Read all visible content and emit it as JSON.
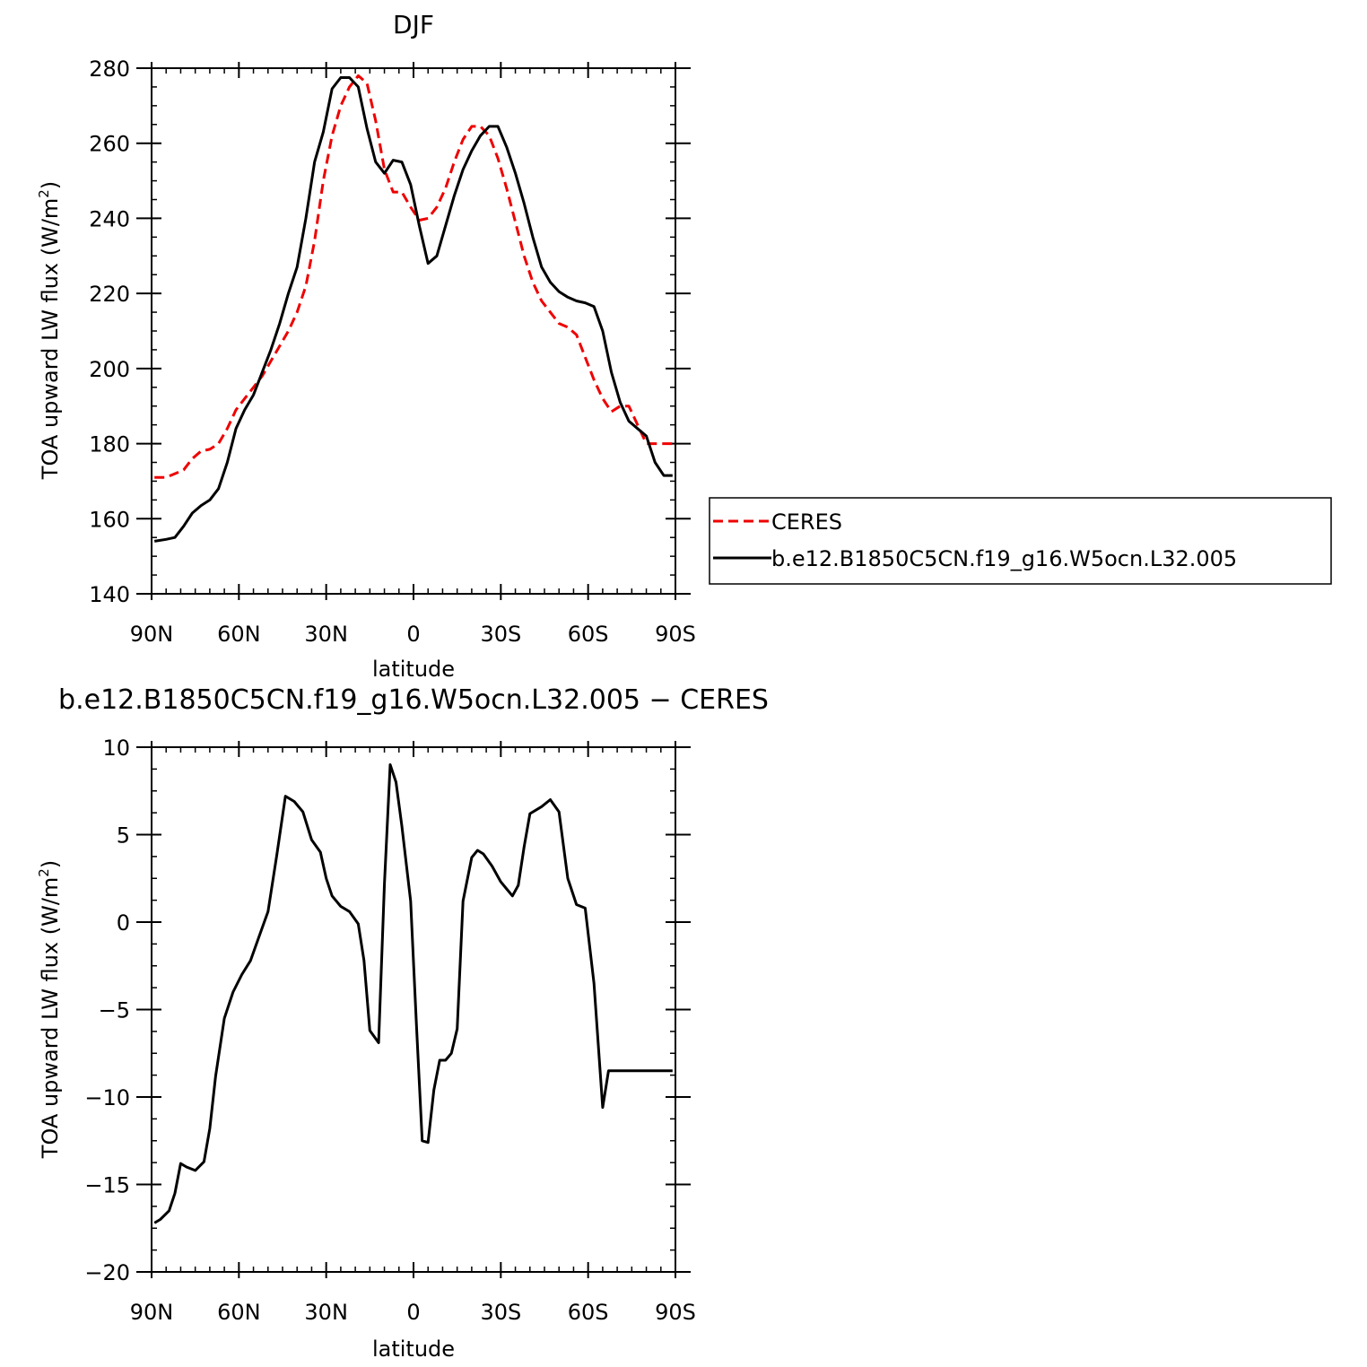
{
  "chart_data": [
    {
      "type": "line",
      "title": "DJF",
      "xlabel": "latitude",
      "ylabel_main": "TOA upward LW flux (W/m",
      "ylabel_sup": "2",
      "ylabel_end": ")",
      "xlim": [
        90,
        -90
      ],
      "ylim": [
        140,
        280
      ],
      "xticks": [
        90,
        60,
        30,
        0,
        -30,
        -60,
        -90
      ],
      "xtick_labels": [
        "90N",
        "60N",
        "30N",
        "0",
        "30S",
        "60S",
        "90S"
      ],
      "yticks": [
        140,
        160,
        180,
        200,
        220,
        240,
        260,
        280
      ],
      "ytick_labels": [
        "140",
        "160",
        "180",
        "200",
        "220",
        "240",
        "260",
        "280"
      ],
      "legend": {
        "placement": "right",
        "entries": [
          "CERES",
          "b.e12.B1850C5CN.f19_g16.W5ocn.L32.005"
        ]
      },
      "series": [
        {
          "name": "CERES",
          "color": "#ee0000",
          "style": "dashed",
          "x": [
            89,
            85,
            82,
            79,
            76,
            73,
            70,
            67,
            64,
            61,
            58,
            55,
            52,
            49,
            46,
            43,
            40,
            37,
            34,
            31,
            28,
            25,
            22,
            19,
            16,
            13,
            10,
            7,
            4,
            1,
            -2,
            -5,
            -8,
            -11,
            -14,
            -17,
            -20,
            -23,
            -26,
            -29,
            -32,
            -35,
            -38,
            -41,
            -44,
            -47,
            -50,
            -53,
            -56,
            -59,
            -62,
            -65,
            -68,
            -71,
            -74,
            -77,
            -80,
            -83,
            -86,
            -89
          ],
          "y": [
            171,
            171,
            172,
            173,
            176,
            178,
            178.5,
            180,
            184,
            189,
            192,
            195,
            198,
            202,
            206,
            210,
            215,
            222,
            234,
            250,
            262,
            270,
            275,
            278,
            276,
            266,
            253,
            247,
            247,
            243,
            239.5,
            240,
            243,
            248,
            255,
            261,
            264.5,
            264.5,
            262,
            256,
            248,
            239,
            230,
            223,
            218,
            215,
            212,
            211,
            209,
            203,
            197,
            192,
            188.5,
            190,
            190,
            185,
            180,
            180,
            180,
            180
          ]
        },
        {
          "name": "b.e12.B1850C5CN.f19_g16.W5ocn.L32.005",
          "color": "#000000",
          "style": "solid",
          "x": [
            89,
            85,
            82,
            79,
            76,
            73,
            70,
            67,
            64,
            61,
            58,
            55,
            52,
            49,
            46,
            43,
            40,
            37,
            34,
            31,
            28,
            25,
            22,
            19,
            16,
            13,
            10,
            7,
            4,
            1,
            -2,
            -5,
            -8,
            -11,
            -14,
            -17,
            -20,
            -23,
            -26,
            -29,
            -32,
            -35,
            -38,
            -41,
            -44,
            -47,
            -50,
            -53,
            -56,
            -59,
            -62,
            -65,
            -68,
            -71,
            -74,
            -77,
            -80,
            -83,
            -86,
            -89
          ],
          "y": [
            154,
            154.5,
            155,
            158,
            161.5,
            163.5,
            165,
            168,
            175,
            184,
            189,
            193,
            199,
            205,
            212,
            220,
            227,
            240,
            255,
            263,
            274.5,
            277.5,
            277.5,
            275,
            264,
            255,
            252,
            255.5,
            255,
            249,
            238,
            228,
            230,
            238,
            246,
            253,
            258,
            262,
            264.5,
            264.5,
            259,
            252,
            244,
            235,
            227,
            223,
            220.5,
            219,
            218,
            217.5,
            216.5,
            210,
            199,
            191,
            186,
            184,
            182,
            175,
            171.5,
            171.5
          ]
        }
      ]
    },
    {
      "type": "line",
      "title": "b.e12.B1850C5CN.f19_g16.W5ocn.L32.005 − CERES",
      "xlabel": "latitude",
      "ylabel_main": "TOA upward LW flux (W/m",
      "ylabel_sup": "2",
      "ylabel_end": ")",
      "xlim": [
        90,
        -90
      ],
      "ylim": [
        -20,
        10
      ],
      "xticks": [
        90,
        60,
        30,
        0,
        -30,
        -60,
        -90
      ],
      "xtick_labels": [
        "90N",
        "60N",
        "30N",
        "0",
        "30S",
        "60S",
        "90S"
      ],
      "yticks": [
        -20,
        -15,
        -10,
        -5,
        0,
        5,
        10
      ],
      "ytick_labels": [
        "−20",
        "−15",
        "−10",
        "−5",
        "0",
        "5",
        "10"
      ],
      "series": [
        {
          "color": "#000000",
          "style": "solid",
          "x": [
            89,
            87,
            84,
            82,
            80,
            78,
            75,
            72,
            70,
            68,
            65,
            62,
            59,
            56,
            53,
            50,
            47,
            44,
            41,
            38,
            35,
            32,
            30,
            28,
            25,
            22,
            19,
            17,
            15,
            12,
            10,
            8,
            6,
            4,
            1,
            -1,
            -3,
            -5,
            -7,
            -9,
            -11,
            -13,
            -15,
            -17,
            -20,
            -22,
            -24,
            -27,
            -30,
            -32,
            -34,
            -36,
            -38,
            -40,
            -44,
            -47,
            -50,
            -53,
            -56,
            -59,
            -62,
            -65,
            -67,
            -70,
            -72,
            -74,
            -76,
            -79,
            -82,
            -86,
            -89
          ],
          "y": [
            -17.2,
            -17,
            -16.5,
            -15.5,
            -13.8,
            -14,
            -14.2,
            -13.7,
            -11.8,
            -8.8,
            -5.5,
            -4,
            -3,
            -2.2,
            -0.8,
            0.6,
            3.8,
            7.2,
            6.9,
            6.3,
            4.7,
            4,
            2.5,
            1.5,
            0.9,
            0.6,
            -0.1,
            -2.2,
            -6.2,
            -6.9,
            2.2,
            9,
            8,
            5.5,
            1.2,
            -5.8,
            -12.5,
            -12.6,
            -9.6,
            -7.9,
            -7.9,
            -7.5,
            -6.1,
            1.2,
            3.7,
            4.1,
            3.9,
            3.2,
            2.3,
            1.9,
            1.5,
            2.1,
            4.3,
            6.2,
            6.6,
            7,
            6.3,
            2.5,
            1,
            0.8,
            -3.5,
            -10.6,
            -8.5,
            -8.5,
            -8.5,
            -8.5,
            -8.5,
            -8.5,
            -8.5,
            -8.5,
            -8.5
          ]
        }
      ]
    }
  ]
}
